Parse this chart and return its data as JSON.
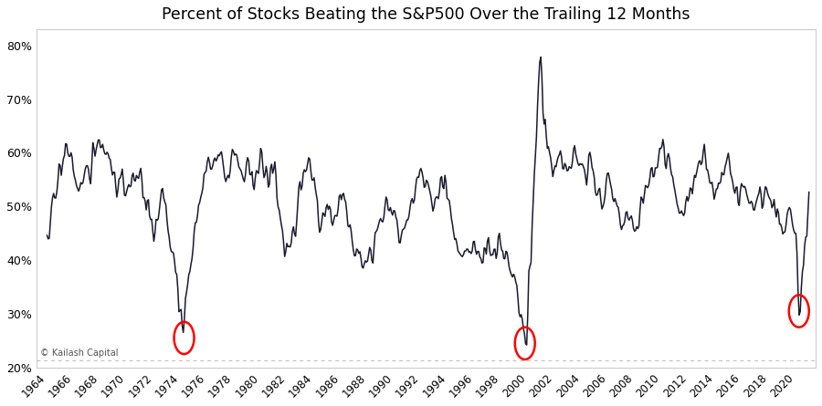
{
  "title": "Percent of Stocks Beating the S&P500 Over the Trailing 12 Months",
  "watermark": "© Kailash Capital",
  "line_color": "#1a1a2e",
  "background_color": "#ffffff",
  "title_fontsize": 12.5,
  "ylim": [
    0.2,
    0.83
  ],
  "yticks": [
    0.2,
    0.3,
    0.4,
    0.5,
    0.6,
    0.7,
    0.8
  ],
  "ytick_labels": [
    "20%",
    "30%",
    "40%",
    "50%",
    "60%",
    "70%",
    "80%"
  ],
  "xtick_start": 1964,
  "xtick_end": 2020,
  "xtick_step": 2,
  "circle_points": [
    {
      "year": 1974.25,
      "value": 0.255
    },
    {
      "year": 1999.75,
      "value": 0.245
    },
    {
      "year": 2020.25,
      "value": 0.305
    }
  ],
  "circle_color": "red",
  "hline_y": 0.213,
  "hline_color": "#bbbbbb",
  "hline_style": "--",
  "line_width": 1.1
}
